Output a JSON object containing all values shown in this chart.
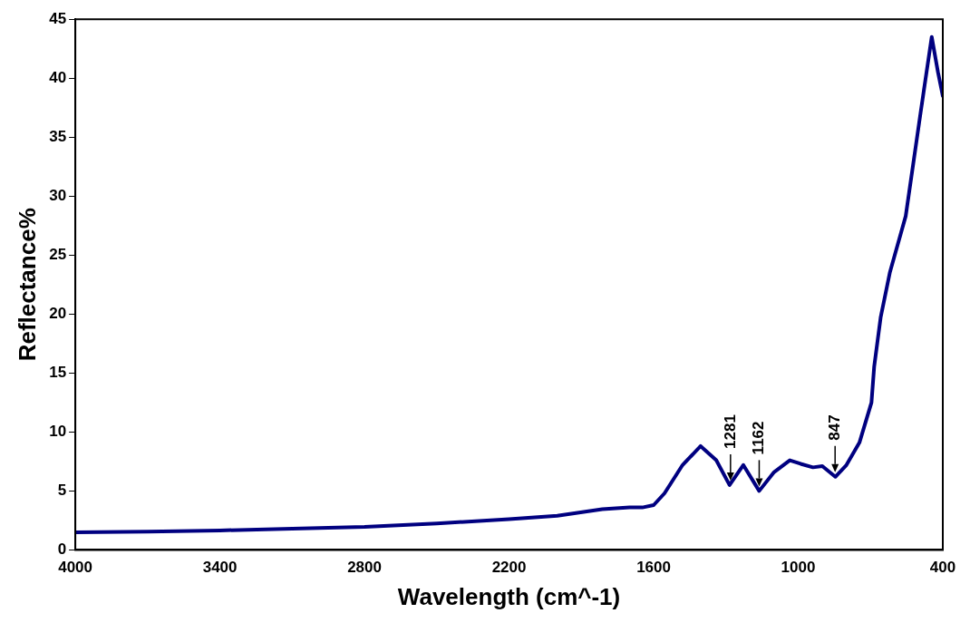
{
  "chart_data": {
    "type": "line",
    "xlabel": "Wavelength (cm^-1)",
    "ylabel": "Reflectance%",
    "xlim": [
      4000,
      400
    ],
    "xticks": [
      4000,
      3400,
      2800,
      2200,
      1600,
      1000,
      400
    ],
    "ylim": [
      0,
      45
    ],
    "yticks": [
      0,
      5,
      10,
      15,
      20,
      25,
      30,
      35,
      40,
      45
    ],
    "grid": false,
    "legend": false,
    "marker": "none",
    "line_style": "solid",
    "annotations": [
      {
        "text": "1281",
        "x": 1281,
        "y": 5.5
      },
      {
        "text": "1162",
        "x": 1162,
        "y": 5.0
      },
      {
        "text": "847",
        "x": 847,
        "y": 6.2
      }
    ],
    "series": [
      {
        "color": "#000080",
        "x": [
          4000,
          3700,
          3400,
          3100,
          2800,
          2500,
          2200,
          2000,
          1813,
          1700,
          1647,
          1600,
          1555,
          1480,
          1405,
          1340,
          1285,
          1228,
          1162,
          1100,
          1035,
          990,
          939,
          900,
          846,
          800,
          746,
          696,
          685,
          658,
          620,
          554,
          492,
          446,
          420,
          400
        ],
        "values": [
          1.5,
          1.55,
          1.65,
          1.8,
          1.95,
          2.25,
          2.6,
          2.9,
          3.45,
          3.6,
          3.6,
          3.8,
          4.8,
          7.2,
          8.8,
          7.6,
          5.5,
          7.2,
          5.0,
          6.6,
          7.6,
          7.3,
          7.0,
          7.1,
          6.2,
          7.2,
          9.1,
          12.5,
          15.5,
          19.7,
          23.5,
          28.3,
          37.1,
          43.5,
          40.5,
          38.5
        ]
      }
    ]
  }
}
